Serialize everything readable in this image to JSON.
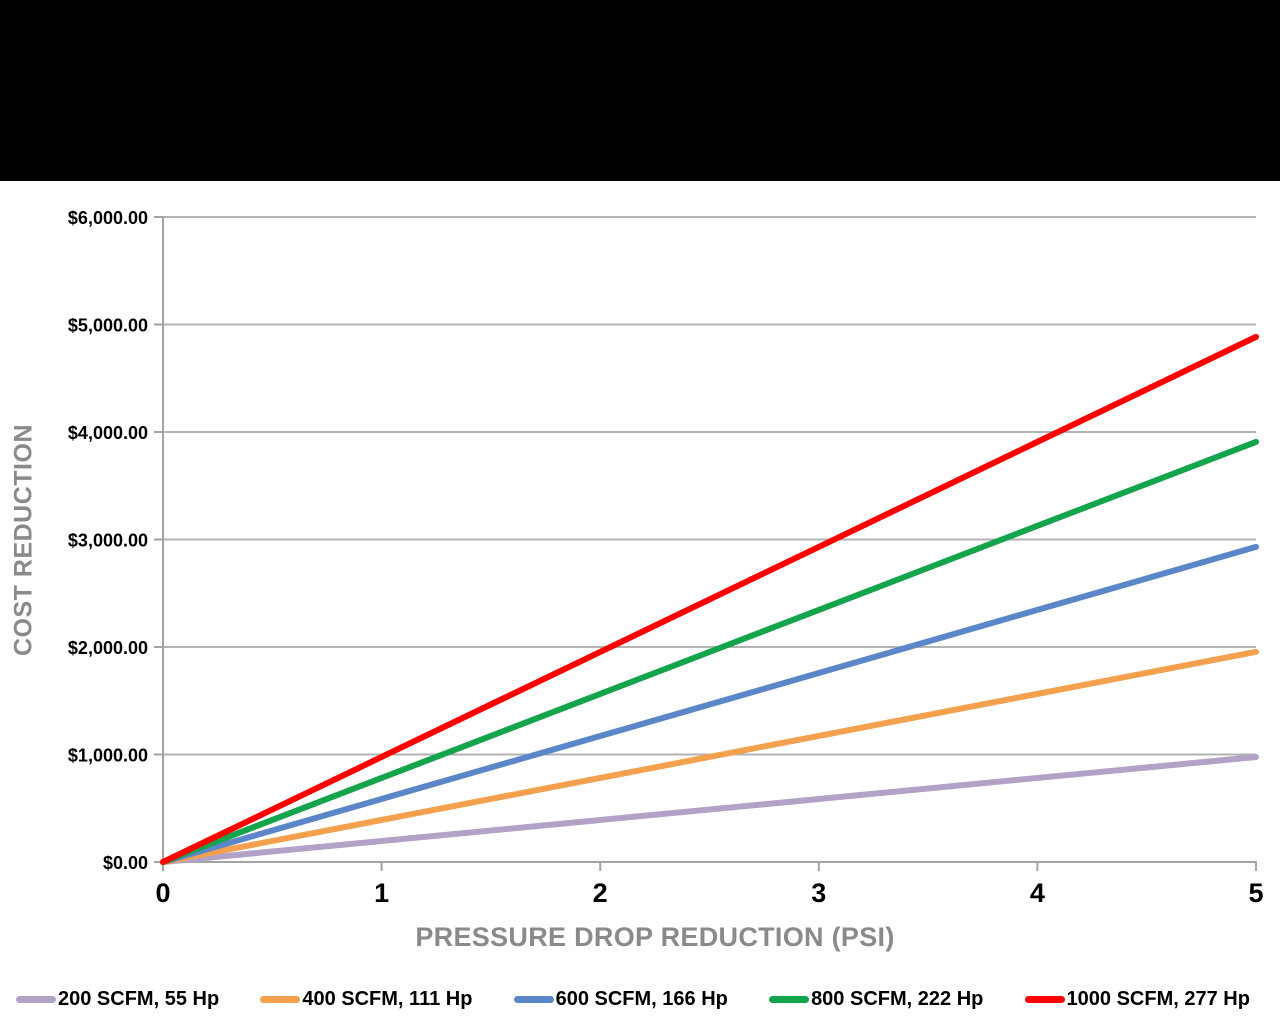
{
  "chart_data": {
    "type": "line",
    "title": "",
    "xlabel": "PRESSURE DROP REDUCTION (PSI)",
    "ylabel": "COST REDUCTION",
    "xlim": [
      0,
      5
    ],
    "ylim": [
      0,
      6000
    ],
    "x": [
      0,
      1,
      2,
      3,
      4,
      5
    ],
    "x_tick_labels": [
      "0",
      "1",
      "2",
      "3",
      "4",
      "5"
    ],
    "y_ticks": [
      0,
      1000,
      2000,
      3000,
      4000,
      5000,
      6000
    ],
    "y_tick_labels": [
      "$0.00",
      "$1,000.00",
      "$2,000.00",
      "$3,000.00",
      "$4,000.00",
      "$5,000.00",
      "$6,000.00"
    ],
    "grid": "horizontal",
    "legend_position": "bottom",
    "axis_color": "#a3a3a3",
    "gridline_color": "#b3b3b3",
    "tick_label_color": "#000000",
    "axis_title_color": "#8a8a8a",
    "series": [
      {
        "name": "200 SCFM, 55 Hp",
        "color": "#b3a2c7",
        "values": [
          0,
          195,
          391,
          586,
          782,
          977
        ]
      },
      {
        "name": "400 SCFM, 111 Hp",
        "color": "#f3a14e",
        "values": [
          0,
          391,
          782,
          1173,
          1564,
          1955
        ]
      },
      {
        "name": "600 SCFM, 166 Hp",
        "color": "#5b87c9",
        "values": [
          0,
          586,
          1172,
          1758,
          2345,
          2931
        ]
      },
      {
        "name": "800 SCFM, 222 Hp",
        "color": "#14a44b",
        "values": [
          0,
          782,
          1563,
          2345,
          3127,
          3908
        ]
      },
      {
        "name": "1000 SCFM, 277 Hp",
        "color": "#fe0000",
        "values": [
          0,
          977,
          1954,
          2931,
          3908,
          4885
        ]
      }
    ]
  }
}
